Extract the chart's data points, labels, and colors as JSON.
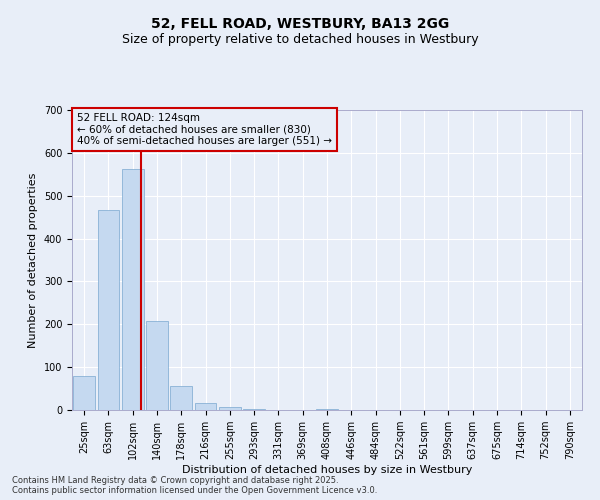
{
  "title": "52, FELL ROAD, WESTBURY, BA13 2GG",
  "subtitle": "Size of property relative to detached houses in Westbury",
  "xlabel": "Distribution of detached houses by size in Westbury",
  "ylabel": "Number of detached properties",
  "categories": [
    "25sqm",
    "63sqm",
    "102sqm",
    "140sqm",
    "178sqm",
    "216sqm",
    "255sqm",
    "293sqm",
    "331sqm",
    "369sqm",
    "408sqm",
    "446sqm",
    "484sqm",
    "522sqm",
    "561sqm",
    "599sqm",
    "637sqm",
    "675sqm",
    "714sqm",
    "752sqm",
    "790sqm"
  ],
  "values": [
    80,
    467,
    563,
    208,
    57,
    16,
    7,
    3,
    0,
    0,
    3,
    0,
    0,
    0,
    0,
    0,
    0,
    0,
    0,
    0,
    0
  ],
  "bar_color": "#c5d9f0",
  "bar_edge_color": "#7aa8d0",
  "ylim": [
    0,
    700
  ],
  "yticks": [
    0,
    100,
    200,
    300,
    400,
    500,
    600,
    700
  ],
  "property_line_x": 2.35,
  "property_line_color": "#cc0000",
  "annotation_text": "52 FELL ROAD: 124sqm\n← 60% of detached houses are smaller (830)\n40% of semi-detached houses are larger (551) →",
  "annotation_box_color": "#cc0000",
  "background_color": "#e8eef8",
  "grid_color": "#ffffff",
  "footer_line1": "Contains HM Land Registry data © Crown copyright and database right 2025.",
  "footer_line2": "Contains public sector information licensed under the Open Government Licence v3.0.",
  "title_fontsize": 10,
  "subtitle_fontsize": 9,
  "tick_fontsize": 7,
  "ylabel_fontsize": 8,
  "xlabel_fontsize": 8,
  "annotation_fontsize": 7.5,
  "footer_fontsize": 6
}
